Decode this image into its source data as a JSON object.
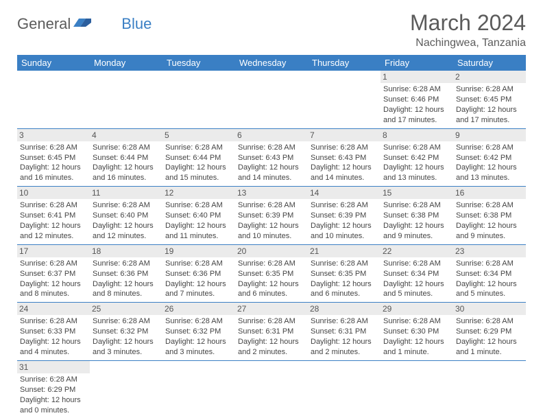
{
  "branding": {
    "logo_general": "General",
    "logo_blue": "Blue"
  },
  "header": {
    "month_title": "March 2024",
    "location": "Nachingwea, Tanzania"
  },
  "day_names": [
    "Sunday",
    "Monday",
    "Tuesday",
    "Wednesday",
    "Thursday",
    "Friday",
    "Saturday"
  ],
  "colors": {
    "header_bg": "#3a7fc4",
    "header_text": "#ffffff",
    "day_strip_bg": "#ebebeb",
    "text": "#444444",
    "border": "#3a7fc4"
  },
  "weeks": [
    [
      null,
      null,
      null,
      null,
      null,
      {
        "day": "1",
        "sunrise": "Sunrise: 6:28 AM",
        "sunset": "Sunset: 6:46 PM",
        "daylight1": "Daylight: 12 hours",
        "daylight2": "and 17 minutes."
      },
      {
        "day": "2",
        "sunrise": "Sunrise: 6:28 AM",
        "sunset": "Sunset: 6:45 PM",
        "daylight1": "Daylight: 12 hours",
        "daylight2": "and 17 minutes."
      }
    ],
    [
      {
        "day": "3",
        "sunrise": "Sunrise: 6:28 AM",
        "sunset": "Sunset: 6:45 PM",
        "daylight1": "Daylight: 12 hours",
        "daylight2": "and 16 minutes."
      },
      {
        "day": "4",
        "sunrise": "Sunrise: 6:28 AM",
        "sunset": "Sunset: 6:44 PM",
        "daylight1": "Daylight: 12 hours",
        "daylight2": "and 16 minutes."
      },
      {
        "day": "5",
        "sunrise": "Sunrise: 6:28 AM",
        "sunset": "Sunset: 6:44 PM",
        "daylight1": "Daylight: 12 hours",
        "daylight2": "and 15 minutes."
      },
      {
        "day": "6",
        "sunrise": "Sunrise: 6:28 AM",
        "sunset": "Sunset: 6:43 PM",
        "daylight1": "Daylight: 12 hours",
        "daylight2": "and 14 minutes."
      },
      {
        "day": "7",
        "sunrise": "Sunrise: 6:28 AM",
        "sunset": "Sunset: 6:43 PM",
        "daylight1": "Daylight: 12 hours",
        "daylight2": "and 14 minutes."
      },
      {
        "day": "8",
        "sunrise": "Sunrise: 6:28 AM",
        "sunset": "Sunset: 6:42 PM",
        "daylight1": "Daylight: 12 hours",
        "daylight2": "and 13 minutes."
      },
      {
        "day": "9",
        "sunrise": "Sunrise: 6:28 AM",
        "sunset": "Sunset: 6:42 PM",
        "daylight1": "Daylight: 12 hours",
        "daylight2": "and 13 minutes."
      }
    ],
    [
      {
        "day": "10",
        "sunrise": "Sunrise: 6:28 AM",
        "sunset": "Sunset: 6:41 PM",
        "daylight1": "Daylight: 12 hours",
        "daylight2": "and 12 minutes."
      },
      {
        "day": "11",
        "sunrise": "Sunrise: 6:28 AM",
        "sunset": "Sunset: 6:40 PM",
        "daylight1": "Daylight: 12 hours",
        "daylight2": "and 12 minutes."
      },
      {
        "day": "12",
        "sunrise": "Sunrise: 6:28 AM",
        "sunset": "Sunset: 6:40 PM",
        "daylight1": "Daylight: 12 hours",
        "daylight2": "and 11 minutes."
      },
      {
        "day": "13",
        "sunrise": "Sunrise: 6:28 AM",
        "sunset": "Sunset: 6:39 PM",
        "daylight1": "Daylight: 12 hours",
        "daylight2": "and 10 minutes."
      },
      {
        "day": "14",
        "sunrise": "Sunrise: 6:28 AM",
        "sunset": "Sunset: 6:39 PM",
        "daylight1": "Daylight: 12 hours",
        "daylight2": "and 10 minutes."
      },
      {
        "day": "15",
        "sunrise": "Sunrise: 6:28 AM",
        "sunset": "Sunset: 6:38 PM",
        "daylight1": "Daylight: 12 hours",
        "daylight2": "and 9 minutes."
      },
      {
        "day": "16",
        "sunrise": "Sunrise: 6:28 AM",
        "sunset": "Sunset: 6:38 PM",
        "daylight1": "Daylight: 12 hours",
        "daylight2": "and 9 minutes."
      }
    ],
    [
      {
        "day": "17",
        "sunrise": "Sunrise: 6:28 AM",
        "sunset": "Sunset: 6:37 PM",
        "daylight1": "Daylight: 12 hours",
        "daylight2": "and 8 minutes."
      },
      {
        "day": "18",
        "sunrise": "Sunrise: 6:28 AM",
        "sunset": "Sunset: 6:36 PM",
        "daylight1": "Daylight: 12 hours",
        "daylight2": "and 8 minutes."
      },
      {
        "day": "19",
        "sunrise": "Sunrise: 6:28 AM",
        "sunset": "Sunset: 6:36 PM",
        "daylight1": "Daylight: 12 hours",
        "daylight2": "and 7 minutes."
      },
      {
        "day": "20",
        "sunrise": "Sunrise: 6:28 AM",
        "sunset": "Sunset: 6:35 PM",
        "daylight1": "Daylight: 12 hours",
        "daylight2": "and 6 minutes."
      },
      {
        "day": "21",
        "sunrise": "Sunrise: 6:28 AM",
        "sunset": "Sunset: 6:35 PM",
        "daylight1": "Daylight: 12 hours",
        "daylight2": "and 6 minutes."
      },
      {
        "day": "22",
        "sunrise": "Sunrise: 6:28 AM",
        "sunset": "Sunset: 6:34 PM",
        "daylight1": "Daylight: 12 hours",
        "daylight2": "and 5 minutes."
      },
      {
        "day": "23",
        "sunrise": "Sunrise: 6:28 AM",
        "sunset": "Sunset: 6:34 PM",
        "daylight1": "Daylight: 12 hours",
        "daylight2": "and 5 minutes."
      }
    ],
    [
      {
        "day": "24",
        "sunrise": "Sunrise: 6:28 AM",
        "sunset": "Sunset: 6:33 PM",
        "daylight1": "Daylight: 12 hours",
        "daylight2": "and 4 minutes."
      },
      {
        "day": "25",
        "sunrise": "Sunrise: 6:28 AM",
        "sunset": "Sunset: 6:32 PM",
        "daylight1": "Daylight: 12 hours",
        "daylight2": "and 3 minutes."
      },
      {
        "day": "26",
        "sunrise": "Sunrise: 6:28 AM",
        "sunset": "Sunset: 6:32 PM",
        "daylight1": "Daylight: 12 hours",
        "daylight2": "and 3 minutes."
      },
      {
        "day": "27",
        "sunrise": "Sunrise: 6:28 AM",
        "sunset": "Sunset: 6:31 PM",
        "daylight1": "Daylight: 12 hours",
        "daylight2": "and 2 minutes."
      },
      {
        "day": "28",
        "sunrise": "Sunrise: 6:28 AM",
        "sunset": "Sunset: 6:31 PM",
        "daylight1": "Daylight: 12 hours",
        "daylight2": "and 2 minutes."
      },
      {
        "day": "29",
        "sunrise": "Sunrise: 6:28 AM",
        "sunset": "Sunset: 6:30 PM",
        "daylight1": "Daylight: 12 hours",
        "daylight2": "and 1 minute."
      },
      {
        "day": "30",
        "sunrise": "Sunrise: 6:28 AM",
        "sunset": "Sunset: 6:29 PM",
        "daylight1": "Daylight: 12 hours",
        "daylight2": "and 1 minute."
      }
    ],
    [
      {
        "day": "31",
        "sunrise": "Sunrise: 6:28 AM",
        "sunset": "Sunset: 6:29 PM",
        "daylight1": "Daylight: 12 hours",
        "daylight2": "and 0 minutes."
      },
      null,
      null,
      null,
      null,
      null,
      null
    ]
  ]
}
